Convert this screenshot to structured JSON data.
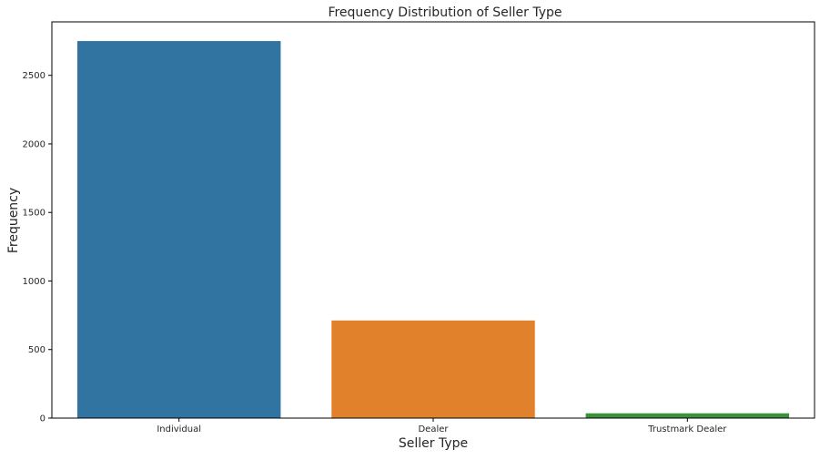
{
  "chart_data": {
    "type": "bar",
    "title": "Frequency Distribution of Seller Type",
    "xlabel": "Seller Type",
    "ylabel": "Frequency",
    "categories": [
      "Individual",
      "Dealer",
      "Trustmark Dealer"
    ],
    "values": [
      2750,
      712,
      35
    ],
    "colors": [
      "#3274a1",
      "#e1812c",
      "#3a923a"
    ],
    "ylim": [
      0,
      2890
    ],
    "yticks": [
      0,
      500,
      1000,
      1500,
      2000,
      2500
    ],
    "ytick_labels": [
      "0",
      "500",
      "1000",
      "1500",
      "2000",
      "2500"
    ],
    "grid": false,
    "legend": "none"
  }
}
